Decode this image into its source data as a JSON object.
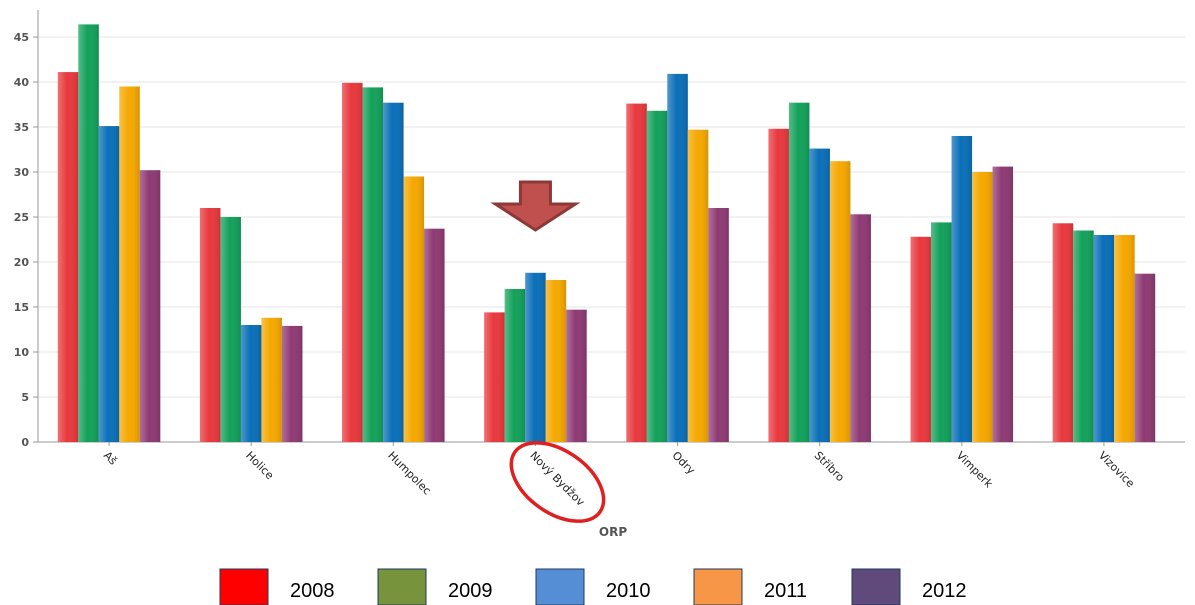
{
  "chart_data": {
    "type": "bar",
    "xlabel": "ORP",
    "ylabel": "",
    "ylim": [
      0,
      48
    ],
    "yticks": [
      0,
      5,
      10,
      15,
      20,
      25,
      30,
      35,
      40,
      45
    ],
    "grid": true,
    "legend_position": "bottom",
    "categories": [
      "Aš",
      "Holice",
      "Humpolec",
      "Nový Bydžov",
      "Odry",
      "Stříbro",
      "Vimperk",
      "Vizovice"
    ],
    "series": [
      {
        "name": "2008",
        "color": "#e8383d",
        "legend_color": "#ff0000",
        "values": [
          41.1,
          26.0,
          39.9,
          14.4,
          37.6,
          34.8,
          22.8,
          24.3
        ]
      },
      {
        "name": "2009",
        "color": "#12a15a",
        "legend_color": "#77933c",
        "values": [
          46.4,
          25.0,
          39.4,
          17.0,
          36.8,
          37.7,
          24.4,
          23.5
        ]
      },
      {
        "name": "2010",
        "color": "#0a6fb8",
        "legend_color": "#558ed5",
        "values": [
          35.1,
          13.0,
          37.7,
          18.8,
          40.9,
          32.6,
          34.0,
          23.0
        ]
      },
      {
        "name": "2011",
        "color": "#f5a800",
        "legend_color": "#f79646",
        "values": [
          39.5,
          13.8,
          29.5,
          18.0,
          34.7,
          31.2,
          30.0,
          23.0
        ]
      },
      {
        "name": "2012",
        "color": "#8e3a73",
        "legend_color": "#604a7b",
        "values": [
          30.2,
          12.9,
          23.7,
          14.7,
          26.0,
          25.3,
          30.6,
          18.7
        ]
      }
    ],
    "annotations": [
      {
        "kind": "arrow-down",
        "target": "Nový Bydžov",
        "color": "#c0504d"
      },
      {
        "kind": "ellipse-highlight",
        "target": "Nový Bydžov label",
        "color": "#e02020"
      }
    ]
  }
}
